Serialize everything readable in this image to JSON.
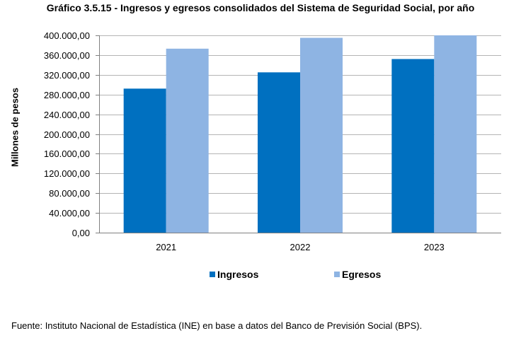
{
  "chart_data": {
    "type": "bar",
    "title": "Gráfico 3.5.15 - Ingresos y egresos consolidados del Sistema de Seguridad Social, por año",
    "xlabel": "",
    "ylabel": "Millones de pesos",
    "categories": [
      "2021",
      "2022",
      "2023"
    ],
    "series": [
      {
        "name": "Ingresos",
        "color": "#0070C0",
        "values": [
          292000,
          325000,
          352000
        ]
      },
      {
        "name": "Egresos",
        "color": "#8EB4E3",
        "values": [
          373000,
          395000,
          400000
        ]
      }
    ],
    "ylim": [
      0,
      400000
    ],
    "yticks": [
      0,
      40000,
      80000,
      120000,
      160000,
      200000,
      240000,
      280000,
      320000,
      360000,
      400000
    ],
    "ytick_labels": [
      "0,00",
      "40.000,00",
      "80.000,00",
      "120.000,00",
      "160.000,00",
      "200.000,00",
      "240.000,00",
      "280.000,00",
      "320.000,00",
      "360.000,00",
      "400.000,00"
    ],
    "grid": true,
    "legend_position": "bottom"
  },
  "source": "Fuente: Instituto Nacional de Estadística (INE) en base a datos del Banco de Previsión Social (BPS)."
}
